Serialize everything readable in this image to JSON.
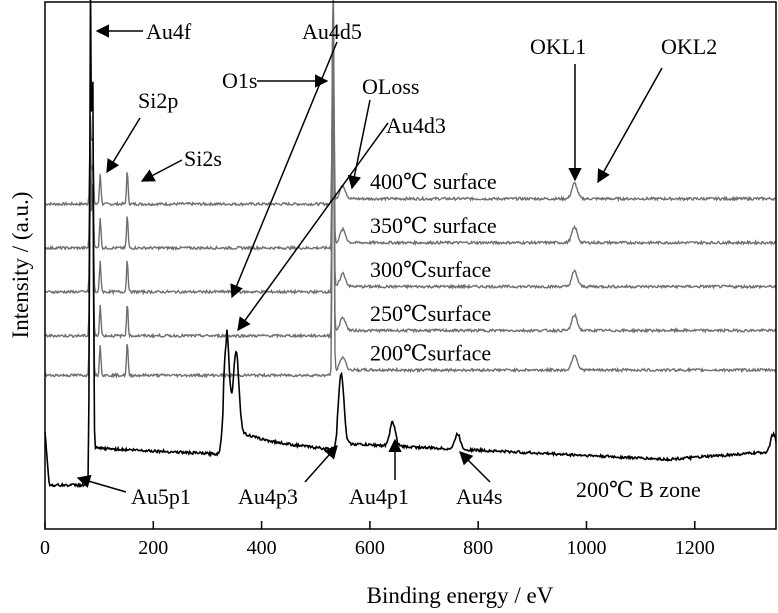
{
  "chart_data": {
    "type": "line",
    "xlabel": "Binding energy / eV",
    "ylabel": "Intensity / (a.u.)",
    "xlim": [
      0,
      1350
    ],
    "xticks": [
      0,
      200,
      400,
      600,
      800,
      1000,
      1200
    ],
    "yticks_shown": false,
    "series": [
      {
        "label": "400℃ surface",
        "baseline": 7.4,
        "peaks": [
          [
            84,
            2.0
          ],
          [
            88,
            1.6
          ],
          [
            102,
            0.7
          ],
          [
            152,
            0.75
          ],
          [
            532,
            5.0
          ],
          [
            550,
            0.3
          ],
          [
            978,
            0.35
          ]
        ]
      },
      {
        "label": "350℃ surface",
        "baseline": 6.4,
        "peaks": [
          [
            84,
            2.4
          ],
          [
            88,
            2.0
          ],
          [
            102,
            0.7
          ],
          [
            152,
            0.75
          ],
          [
            532,
            5.9
          ],
          [
            550,
            0.3
          ],
          [
            978,
            0.35
          ]
        ]
      },
      {
        "label": "300℃surface",
        "baseline": 5.4,
        "peaks": [
          [
            84,
            3.2
          ],
          [
            88,
            2.6
          ],
          [
            102,
            0.7
          ],
          [
            152,
            0.75
          ],
          [
            532,
            6.8
          ],
          [
            550,
            0.3
          ],
          [
            978,
            0.35
          ]
        ]
      },
      {
        "label": "250℃surface",
        "baseline": 4.4,
        "peaks": [
          [
            84,
            4.2
          ],
          [
            88,
            3.6
          ],
          [
            102,
            0.7
          ],
          [
            152,
            0.75
          ],
          [
            532,
            7.8
          ],
          [
            550,
            0.3
          ],
          [
            978,
            0.35
          ]
        ]
      },
      {
        "label": "200℃surface",
        "baseline": 3.5,
        "peaks": [
          [
            84,
            5.1
          ],
          [
            88,
            4.4
          ],
          [
            102,
            0.7
          ],
          [
            152,
            0.75
          ],
          [
            532,
            8.7
          ],
          [
            550,
            0.3
          ],
          [
            978,
            0.35
          ]
        ]
      },
      {
        "label": "200℃  B zone",
        "baseline": 1.5,
        "peaks": [
          [
            84,
            10.4
          ],
          [
            88,
            8.8
          ],
          [
            335,
            2.2
          ],
          [
            353,
            1.8
          ],
          [
            547,
            1.6
          ],
          [
            642,
            0.55
          ],
          [
            762,
            0.35
          ],
          [
            1345,
            0.4
          ]
        ]
      }
    ],
    "annotations": [
      "Au4f",
      "Si2p",
      "Si2s",
      "Au4d5",
      "O1s",
      "OLoss",
      "Au4d3",
      "OKL1",
      "OKL2",
      "Au5p1",
      "Au4p3",
      "Au4p1",
      "Au4s"
    ]
  }
}
